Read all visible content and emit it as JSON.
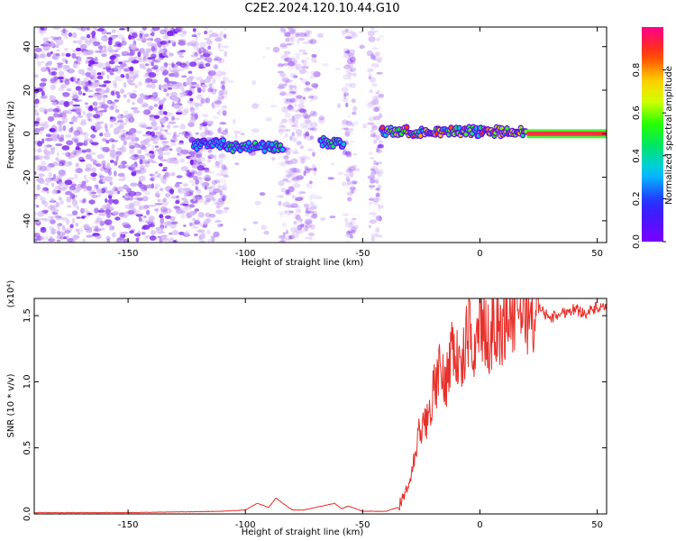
{
  "title": "C2E2.2024.120.10.44.G10",
  "chart_data": [
    {
      "type": "heatmap",
      "xlabel": "Height of straight line (km)",
      "ylabel": "Frequency (Hz)",
      "xlim": [
        -190,
        54
      ],
      "ylim": [
        -50,
        49
      ],
      "xticks": [
        -150,
        -100,
        -50,
        0,
        50
      ],
      "yticks": [
        -40,
        -20,
        0,
        20,
        40
      ],
      "colorbar": {
        "label": "Normalized spectral amplitude",
        "range": [
          0,
          1
        ],
        "ticks": [
          0.0,
          0.2,
          0.4,
          0.6,
          0.8
        ]
      },
      "features": {
        "noise_band_x": [
          -190,
          -42
        ],
        "noise_gaps_x": [
          [
            -108,
            -85
          ],
          [
            -70,
            -58
          ],
          [
            -53,
            -47
          ]
        ],
        "signal_segments": [
          {
            "x": [
              -122,
              -108
            ],
            "freq": -5,
            "peak_amplitude": 0.2
          },
          {
            "x": [
              -108,
              -84
            ],
            "freq": -6,
            "peak_amplitude": 0.45
          },
          {
            "x": [
              -68,
              -58
            ],
            "freq": -4,
            "peak_amplitude": 0.5
          },
          {
            "x": [
              -42,
              20
            ],
            "freq": 1,
            "peak_amplitude": 0.85
          },
          {
            "x": [
              20,
              54
            ],
            "freq": 0,
            "peak_amplitude": 1.0
          }
        ]
      }
    },
    {
      "type": "line",
      "xlabel": "Height of straight line (km)",
      "ylabel": "SNR (10 * v/v)",
      "ylabel_exponent": "(x10⁴)",
      "xlim": [
        -190,
        54
      ],
      "ylim": [
        0,
        1.63
      ],
      "xticks": [
        -150,
        -100,
        -50,
        0,
        50
      ],
      "yticks": [
        0.0,
        0.5,
        1.0,
        1.5
      ],
      "ytick_labels": [
        "0.0",
        "0.5",
        "1.0",
        "1.5"
      ],
      "series": [
        {
          "color": "#e8302a",
          "x": [
            -190,
            -150,
            -110,
            -100,
            -95,
            -90,
            -87,
            -84,
            -80,
            -75,
            -62,
            -59,
            -56,
            -50,
            -40,
            -35,
            -32,
            -30,
            -28,
            -26,
            -24,
            -22,
            -20,
            -17,
            -15,
            -12,
            -10,
            -8,
            -5,
            -3,
            0,
            3,
            6,
            9,
            12,
            15,
            18,
            21,
            25,
            30,
            35,
            40,
            45,
            50,
            54
          ],
          "y": [
            0.01,
            0.01,
            0.02,
            0.03,
            0.08,
            0.05,
            0.12,
            0.08,
            0.03,
            0.03,
            0.08,
            0.04,
            0.06,
            0.02,
            0.02,
            0.05,
            0.12,
            0.25,
            0.4,
            0.6,
            0.65,
            0.75,
            0.9,
            1.1,
            0.95,
            1.3,
            1.2,
            1.05,
            1.4,
            1.2,
            1.5,
            1.3,
            1.45,
            1.35,
            1.55,
            1.45,
            1.6,
            1.5,
            1.56,
            1.48,
            1.52,
            1.55,
            1.52,
            1.56,
            1.55
          ]
        }
      ]
    }
  ]
}
